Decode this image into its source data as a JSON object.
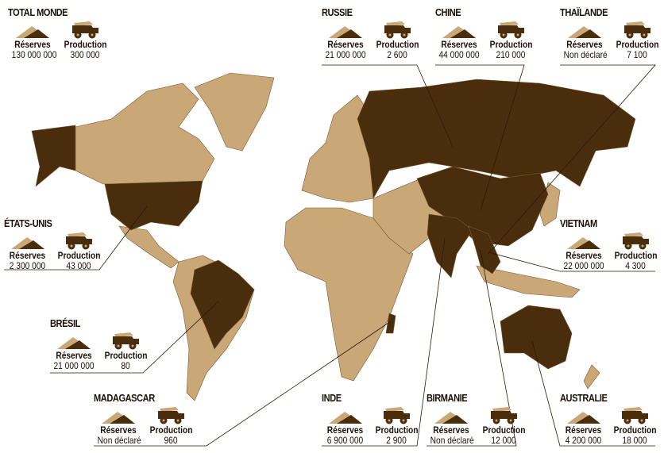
{
  "colors": {
    "land": "#c9a777",
    "highlight": "#4a2d0c",
    "line": "#2a1a08"
  },
  "legend": {
    "reserves_label": "Réserves",
    "production_label": "Production",
    "reserves_icon": "ore-pile-icon",
    "production_icon": "mining-truck-icon"
  },
  "countries": [
    {
      "id": "total",
      "name": "TOTAL MONDE",
      "reserves": "130 000 000",
      "production": "300 000"
    },
    {
      "id": "russie",
      "name": "RUSSIE",
      "reserves": "21 000 000",
      "production": "2 600"
    },
    {
      "id": "chine",
      "name": "CHINE",
      "reserves": "44 000 000",
      "production": "210 000"
    },
    {
      "id": "thailande",
      "name": "THAÏLANDE",
      "reserves": "Non déclaré",
      "production": "7 100"
    },
    {
      "id": "etats-unis",
      "name": "ÉTATS-UNIS",
      "reserves": "2 300 000",
      "production": "43 000"
    },
    {
      "id": "vietnam",
      "name": "VIETNAM",
      "reserves": "22 000 000",
      "production": "4 300"
    },
    {
      "id": "bresil",
      "name": "BRÉSIL",
      "reserves": "21 000 000",
      "production": "80"
    },
    {
      "id": "madagascar",
      "name": "MADAGASCAR",
      "reserves": "Non déclaré",
      "production": "960"
    },
    {
      "id": "inde",
      "name": "INDE",
      "reserves": "6 900 000",
      "production": "2 900"
    },
    {
      "id": "birmanie",
      "name": "BIRMANIE",
      "reserves": "Non déclaré",
      "production": "12 000"
    },
    {
      "id": "australie",
      "name": "AUSTRALIE",
      "reserves": "4 200 000",
      "production": "18 000"
    }
  ]
}
